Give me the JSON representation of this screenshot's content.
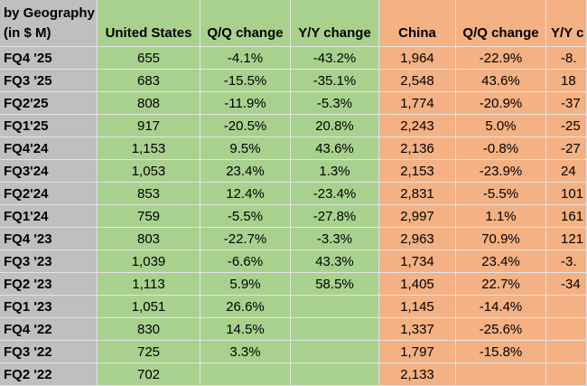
{
  "table": {
    "header": [
      "by Geography",
      "(in $ M)",
      "United States",
      "Q/Q change",
      "Y/Y change",
      "China",
      "Q/Q change",
      "Y/Y c"
    ],
    "rows": [
      [
        "FQ4 '25",
        "655",
        "-4.1%",
        "-43.2%",
        "1,964",
        "-22.9%",
        "-8."
      ],
      [
        "FQ3 '25",
        "683",
        "-15.5%",
        "-35.1%",
        "2,548",
        "43.6%",
        "18"
      ],
      [
        "FQ2'25",
        "808",
        "-11.9%",
        "-5.3%",
        "1,774",
        "-20.9%",
        "-37"
      ],
      [
        "FQ1'25",
        "917",
        "-20.5%",
        "20.8%",
        "2,243",
        "5.0%",
        "-25"
      ],
      [
        "FQ4'24",
        "1,153",
        "9.5%",
        "43.6%",
        "2,136",
        "-0.8%",
        "-27"
      ],
      [
        "FQ3'24",
        "1,053",
        "23.4%",
        "1.3%",
        "2,153",
        "-23.9%",
        "24"
      ],
      [
        "FQ2'24",
        "853",
        "12.4%",
        "-23.4%",
        "2,831",
        "-5.5%",
        "101"
      ],
      [
        "FQ1'24",
        "759",
        "-5.5%",
        "-27.8%",
        "2,997",
        "1.1%",
        "161"
      ],
      [
        "FQ4 '23",
        "803",
        "-22.7%",
        "-3.3%",
        "2,963",
        "70.9%",
        "121"
      ],
      [
        "FQ3 '23",
        "1,039",
        "-6.6%",
        "43.3%",
        "1,734",
        "23.4%",
        "-3."
      ],
      [
        "FQ2 '23",
        "1,113",
        "5.9%",
        "58.5%",
        "1,405",
        "22.7%",
        "-34"
      ],
      [
        "FQ1 '23",
        "1,051",
        "26.6%",
        null,
        "1,145",
        "-14.4%",
        null
      ],
      [
        "FQ4 '22",
        "830",
        "14.5%",
        null,
        "1,337",
        "-25.6%",
        null
      ],
      [
        "FQ3 '22",
        "725",
        "3.3%",
        null,
        "1,797",
        "-15.8%",
        null
      ],
      [
        "FQ2 '22",
        "702",
        null,
        null,
        "2,133",
        null,
        null
      ]
    ]
  }
}
